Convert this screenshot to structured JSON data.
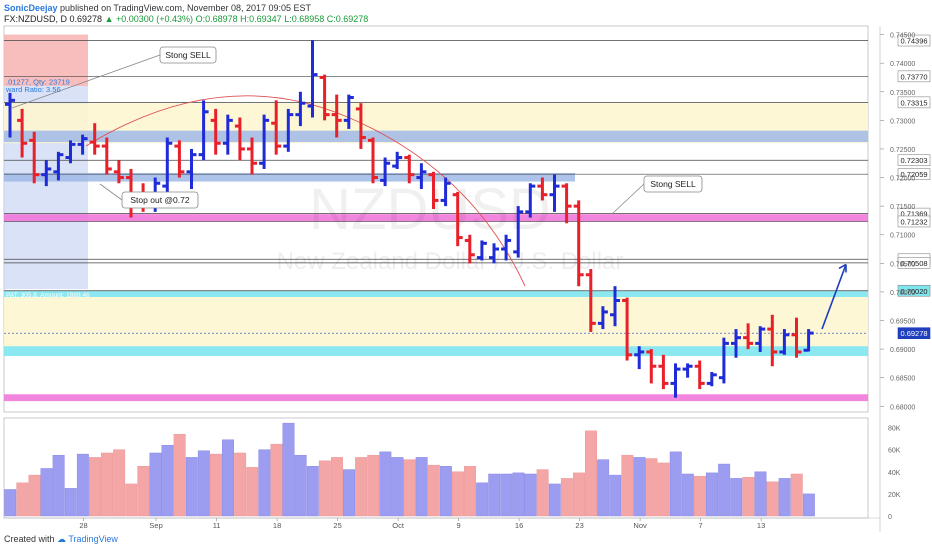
{
  "header": {
    "author": "SonicDeejay",
    "published_text": "published on TradingView.com, November 08, 2017 09:05 EST",
    "symbol": "FX:NZDUSD, D",
    "last": "0.69278",
    "change": "▲ +0.00300 (+0.43%)",
    "open": "O:0.68978",
    "high": "H:0.69347",
    "low": "L:0.68958",
    "close": "C:0.69278"
  },
  "footer": {
    "created_with": "Created with",
    "brand": "TradingView"
  },
  "watermark": {
    "ticker": "NZDUSD",
    "name": "New Zealand Dollar / U.S. Dollar"
  },
  "colors": {
    "up": "#1f2bd6",
    "down": "#e8202a",
    "vol_up": "#9c9cf0",
    "vol_down": "#f4a6a6",
    "accent": "#1f3fbf"
  },
  "chart_data": {
    "type": "bar",
    "subtype": "ohlc",
    "title": "FX:NZDUSD, D",
    "ylim": [
      0.679,
      0.7465
    ],
    "price_ticks": [
      0.745,
      0.74,
      0.735,
      0.73,
      0.725,
      0.72,
      0.715,
      0.71,
      0.705,
      0.7,
      0.695,
      0.69,
      0.685,
      0.68
    ],
    "highlighted_levels": [
      {
        "label": "0.74396",
        "value": 0.74396,
        "style": "dark"
      },
      {
        "label": "0.73770",
        "value": 0.7377,
        "style": "light"
      },
      {
        "label": "0.73315",
        "value": 0.73315,
        "style": "dark"
      },
      {
        "label": "0.72303",
        "value": 0.72303,
        "style": "dark"
      },
      {
        "label": "0.72059",
        "value": 0.72059,
        "style": "dark"
      },
      {
        "label": "0.71369",
        "value": 0.71369,
        "style": "dark"
      },
      {
        "label": "0.71232",
        "value": 0.71232,
        "style": "dark"
      },
      {
        "label": "0.70571",
        "value": 0.70571,
        "style": "dark"
      },
      {
        "label": "0.70508",
        "value": 0.70508,
        "style": "dark"
      },
      {
        "label": "0.70020",
        "value": 0.7002,
        "style": "cyan"
      },
      {
        "label": "0.69278",
        "value": 0.69278,
        "style": "blue"
      }
    ],
    "x_ticks": [
      "28",
      "Sep",
      "11",
      "18",
      "25",
      "Oct",
      "9",
      "16",
      "23",
      "Nov",
      "7",
      "13"
    ],
    "volume_ticks": [
      "80K",
      "60K",
      "40K",
      "20K",
      "0"
    ],
    "volume_ylim": [
      0,
      85000
    ],
    "annotations": [
      {
        "text": "Stong SELL"
      },
      {
        "text": "Stong SELL"
      },
      {
        "text": "Stop out @0.72"
      }
    ],
    "position_tool_texts": [
      ".01277, Qty: 23719",
      "ward Ratio: 3.56",
      "PAT: 305.8, Amount: 1889.46"
    ],
    "bars": [
      {
        "o": 0.7328,
        "h": 0.7348,
        "l": 0.727,
        "c": 0.7335
      },
      {
        "o": 0.73,
        "h": 0.732,
        "l": 0.7235,
        "c": 0.726
      },
      {
        "o": 0.7265,
        "h": 0.728,
        "l": 0.719,
        "c": 0.7205
      },
      {
        "o": 0.7205,
        "h": 0.723,
        "l": 0.7185,
        "c": 0.7215
      },
      {
        "o": 0.721,
        "h": 0.7245,
        "l": 0.7195,
        "c": 0.724
      },
      {
        "o": 0.7235,
        "h": 0.7265,
        "l": 0.7225,
        "c": 0.7258
      },
      {
        "o": 0.7258,
        "h": 0.7275,
        "l": 0.724,
        "c": 0.7268
      },
      {
        "o": 0.7262,
        "h": 0.7295,
        "l": 0.724,
        "c": 0.7255
      },
      {
        "o": 0.7255,
        "h": 0.727,
        "l": 0.7205,
        "c": 0.7215
      },
      {
        "o": 0.721,
        "h": 0.723,
        "l": 0.719,
        "c": 0.72
      },
      {
        "o": 0.72,
        "h": 0.7215,
        "l": 0.713,
        "c": 0.717
      },
      {
        "o": 0.717,
        "h": 0.719,
        "l": 0.714,
        "c": 0.7155
      },
      {
        "o": 0.715,
        "h": 0.72,
        "l": 0.714,
        "c": 0.719
      },
      {
        "o": 0.7185,
        "h": 0.727,
        "l": 0.717,
        "c": 0.726
      },
      {
        "o": 0.7255,
        "h": 0.7265,
        "l": 0.72,
        "c": 0.721
      },
      {
        "o": 0.721,
        "h": 0.725,
        "l": 0.718,
        "c": 0.724
      },
      {
        "o": 0.724,
        "h": 0.7335,
        "l": 0.723,
        "c": 0.7315
      },
      {
        "o": 0.73,
        "h": 0.732,
        "l": 0.724,
        "c": 0.726
      },
      {
        "o": 0.726,
        "h": 0.731,
        "l": 0.724,
        "c": 0.73
      },
      {
        "o": 0.729,
        "h": 0.7305,
        "l": 0.723,
        "c": 0.725
      },
      {
        "o": 0.725,
        "h": 0.727,
        "l": 0.7205,
        "c": 0.7225
      },
      {
        "o": 0.7225,
        "h": 0.731,
        "l": 0.7215,
        "c": 0.73
      },
      {
        "o": 0.7295,
        "h": 0.7335,
        "l": 0.724,
        "c": 0.7255
      },
      {
        "o": 0.7255,
        "h": 0.732,
        "l": 0.7245,
        "c": 0.731
      },
      {
        "o": 0.731,
        "h": 0.735,
        "l": 0.729,
        "c": 0.733
      },
      {
        "o": 0.7325,
        "h": 0.744,
        "l": 0.7305,
        "c": 0.738
      },
      {
        "o": 0.7375,
        "h": 0.738,
        "l": 0.73,
        "c": 0.731
      },
      {
        "o": 0.731,
        "h": 0.7345,
        "l": 0.727,
        "c": 0.73
      },
      {
        "o": 0.73,
        "h": 0.7345,
        "l": 0.7285,
        "c": 0.734
      },
      {
        "o": 0.732,
        "h": 0.733,
        "l": 0.725,
        "c": 0.727
      },
      {
        "o": 0.7265,
        "h": 0.727,
        "l": 0.719,
        "c": 0.72
      },
      {
        "o": 0.7195,
        "h": 0.7235,
        "l": 0.7185,
        "c": 0.7225
      },
      {
        "o": 0.722,
        "h": 0.7245,
        "l": 0.7215,
        "c": 0.7235
      },
      {
        "o": 0.7235,
        "h": 0.724,
        "l": 0.719,
        "c": 0.7205
      },
      {
        "o": 0.72,
        "h": 0.7225,
        "l": 0.718,
        "c": 0.721
      },
      {
        "o": 0.7205,
        "h": 0.721,
        "l": 0.7145,
        "c": 0.716
      },
      {
        "o": 0.716,
        "h": 0.72,
        "l": 0.715,
        "c": 0.719
      },
      {
        "o": 0.717,
        "h": 0.7175,
        "l": 0.708,
        "c": 0.7095
      },
      {
        "o": 0.709,
        "h": 0.71,
        "l": 0.705,
        "c": 0.7065
      },
      {
        "o": 0.706,
        "h": 0.709,
        "l": 0.7055,
        "c": 0.7085
      },
      {
        "o": 0.706,
        "h": 0.7085,
        "l": 0.705,
        "c": 0.7075
      },
      {
        "o": 0.7075,
        "h": 0.71,
        "l": 0.7055,
        "c": 0.709
      },
      {
        "o": 0.707,
        "h": 0.715,
        "l": 0.706,
        "c": 0.714
      },
      {
        "o": 0.714,
        "h": 0.719,
        "l": 0.713,
        "c": 0.7185
      },
      {
        "o": 0.7185,
        "h": 0.72,
        "l": 0.716,
        "c": 0.717
      },
      {
        "o": 0.717,
        "h": 0.7205,
        "l": 0.714,
        "c": 0.7185
      },
      {
        "o": 0.7185,
        "h": 0.719,
        "l": 0.712,
        "c": 0.715
      },
      {
        "o": 0.715,
        "h": 0.716,
        "l": 0.701,
        "c": 0.703
      },
      {
        "o": 0.703,
        "h": 0.704,
        "l": 0.693,
        "c": 0.6945
      },
      {
        "o": 0.6945,
        "h": 0.6975,
        "l": 0.6935,
        "c": 0.6965
      },
      {
        "o": 0.696,
        "h": 0.701,
        "l": 0.694,
        "c": 0.6985
      },
      {
        "o": 0.6985,
        "h": 0.699,
        "l": 0.688,
        "c": 0.689
      },
      {
        "o": 0.689,
        "h": 0.6905,
        "l": 0.6865,
        "c": 0.6895
      },
      {
        "o": 0.6895,
        "h": 0.69,
        "l": 0.684,
        "c": 0.687
      },
      {
        "o": 0.687,
        "h": 0.689,
        "l": 0.683,
        "c": 0.684
      },
      {
        "o": 0.684,
        "h": 0.6875,
        "l": 0.6815,
        "c": 0.6865
      },
      {
        "o": 0.6865,
        "h": 0.6875,
        "l": 0.685,
        "c": 0.687
      },
      {
        "o": 0.687,
        "h": 0.688,
        "l": 0.683,
        "c": 0.684
      },
      {
        "o": 0.684,
        "h": 0.686,
        "l": 0.6835,
        "c": 0.6855
      },
      {
        "o": 0.685,
        "h": 0.692,
        "l": 0.684,
        "c": 0.691
      },
      {
        "o": 0.691,
        "h": 0.6935,
        "l": 0.6885,
        "c": 0.692
      },
      {
        "o": 0.692,
        "h": 0.6945,
        "l": 0.69,
        "c": 0.691
      },
      {
        "o": 0.691,
        "h": 0.694,
        "l": 0.6895,
        "c": 0.6935
      },
      {
        "o": 0.6935,
        "h": 0.696,
        "l": 0.687,
        "c": 0.6895
      },
      {
        "o": 0.6895,
        "h": 0.6935,
        "l": 0.689,
        "c": 0.6925
      },
      {
        "o": 0.6925,
        "h": 0.6955,
        "l": 0.6885,
        "c": 0.6895
      },
      {
        "o": 0.6898,
        "h": 0.6935,
        "l": 0.6896,
        "c": 0.6928
      }
    ],
    "volume": [
      24000,
      30000,
      37000,
      43000,
      55000,
      25000,
      56000,
      53000,
      57000,
      60000,
      29000,
      45000,
      57000,
      64000,
      74000,
      53000,
      59000,
      56000,
      69000,
      57000,
      44000,
      60000,
      65000,
      84000,
      55000,
      45000,
      50000,
      53000,
      42000,
      53000,
      55000,
      58000,
      53000,
      51000,
      53000,
      46000,
      45000,
      40000,
      45000,
      30000,
      38000,
      38000,
      39000,
      38000,
      42000,
      29000,
      34000,
      39000,
      77000,
      51000,
      37000,
      55000,
      53000,
      52000,
      48000,
      58000,
      38000,
      36000,
      39000,
      47000,
      34000,
      35000,
      40000,
      31000,
      34000,
      38000,
      20000
    ]
  }
}
